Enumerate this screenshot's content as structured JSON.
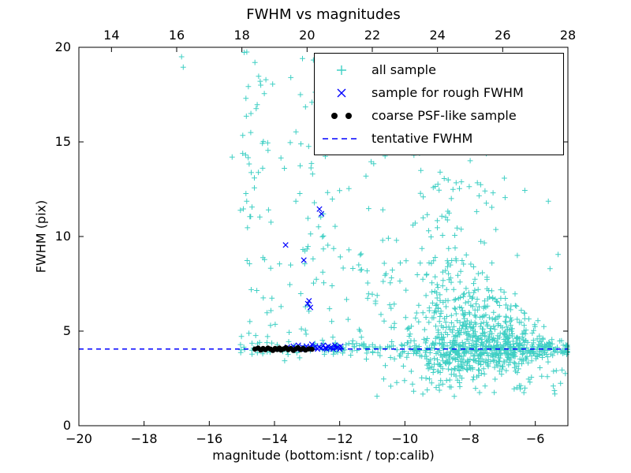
{
  "chart_data": {
    "type": "scatter",
    "title": "FWHM vs magnitudes",
    "xlabel": "magnitude (bottom:isnt / top:calib)",
    "ylabel": "FWHM (pix)",
    "x_range": [
      -20,
      -5
    ],
    "y_range": [
      0,
      20
    ],
    "top_x_range": [
      13,
      28
    ],
    "x_ticks": [
      -20,
      -18,
      -16,
      -14,
      -12,
      -10,
      -8,
      -6
    ],
    "top_x_ticks": [
      14,
      16,
      18,
      20,
      22,
      24,
      26,
      28
    ],
    "y_ticks": [
      0,
      5,
      10,
      15,
      20
    ],
    "grid": false,
    "legend_position": "upper right",
    "seed": 42,
    "colors": {
      "all_sample": "#3fcfc4",
      "rough": "#0000ff",
      "psf": "#000000",
      "tentative": "#0000ff",
      "axes": "#000000",
      "background": "#ffffff"
    },
    "legend": {
      "entries": [
        {
          "label": "all sample",
          "marker": "plus"
        },
        {
          "label": "sample for rough FWHM",
          "marker": "x"
        },
        {
          "label": "coarse PSF-like sample",
          "marker": "dot"
        },
        {
          "label": "tentative FWHM",
          "marker": "dashed-line"
        }
      ]
    },
    "series": {
      "all_sample": {
        "name": "all sample",
        "marker": "plus",
        "clusters": [
          {
            "type": "uniform",
            "x": [
              -15.05,
              -14.05
            ],
            "y": [
              3.9,
              19.8
            ],
            "count": 58
          },
          {
            "type": "uniform",
            "x": [
              -13.35,
              -12.4
            ],
            "y": [
              4.4,
              19.5
            ],
            "count": 34
          },
          {
            "type": "uniform",
            "x": [
              -14.05,
              -10.45
            ],
            "y": [
              4.4,
              15.6
            ],
            "count": 40
          },
          {
            "type": "uniform",
            "x": [
              -12.35,
              -10.55
            ],
            "y": [
              4.2,
              9.2
            ],
            "count": 22
          },
          {
            "type": "funnel",
            "xm": -7.8,
            "xs": 1.25,
            "xclip": [
              -10.9,
              -5.02
            ],
            "y_base": 4.0,
            "sy_min": 0.18,
            "sy_up_k": 0.62,
            "sy_dn_k": 0.22,
            "up_frac": 0.63,
            "yclip": [
              1.35,
              15.2
            ],
            "count": 780
          },
          {
            "type": "gauss",
            "mx": -8.4,
            "sx": 0.95,
            "xclip": [
              -10.6,
              -5.6
            ],
            "my": 11.6,
            "sy": 1.8,
            "yclip": [
              8.6,
              15.0
            ],
            "count": 55
          },
          {
            "type": "strip",
            "x": [
              -12.5,
              -5.02
            ],
            "my": 4.05,
            "sy": 0.2,
            "yclip": [
              3.45,
              4.75
            ],
            "count": 220
          },
          {
            "type": "strip",
            "x": [
              -15.05,
              -12.5
            ],
            "my": 4.1,
            "sy": 0.26,
            "yclip": [
              3.4,
              5.0
            ],
            "count": 42
          },
          {
            "type": "uniform",
            "x": [
              -8.7,
              -5.05
            ],
            "y": [
              1.55,
              3.2
            ],
            "count": 36
          }
        ],
        "points": [
          [
            -16.85,
            19.5
          ],
          [
            -16.8,
            18.95
          ],
          [
            -14.85,
            19.75
          ],
          [
            -14.6,
            19.2
          ],
          [
            -13.5,
            18.4
          ],
          [
            -12.62,
            19.05
          ],
          [
            -12.5,
            18.1
          ],
          [
            -12.42,
            17.35
          ],
          [
            -13.05,
            16.85
          ],
          [
            -11.62,
            16.1
          ],
          [
            -15.3,
            14.2
          ],
          [
            -10.35,
            14.55
          ],
          [
            -9.55,
            14.4
          ],
          [
            -8.5,
            15.0
          ],
          [
            -7.95,
            15.6
          ],
          [
            -6.55,
            9.0
          ],
          [
            -5.55,
            8.3
          ],
          [
            -5.3,
            9.05
          ],
          [
            -6.35,
            1.75
          ],
          [
            -5.45,
            2.1
          ]
        ]
      },
      "rough_fwhm": {
        "name": "sample for rough FWHM",
        "marker": "x",
        "points": [
          [
            -13.6,
            4.15
          ],
          [
            -13.5,
            4.05
          ],
          [
            -13.42,
            4.2
          ],
          [
            -13.34,
            4.1
          ],
          [
            -13.27,
            4.25
          ],
          [
            -13.2,
            4.05
          ],
          [
            -13.14,
            4.15
          ],
          [
            -13.08,
            4.1
          ],
          [
            -13.02,
            4.2
          ],
          [
            -12.96,
            4.05
          ],
          [
            -12.9,
            4.15
          ],
          [
            -12.85,
            4.3
          ],
          [
            -12.8,
            4.1
          ],
          [
            -12.74,
            4.2
          ],
          [
            -12.68,
            4.05
          ],
          [
            -12.63,
            4.15
          ],
          [
            -12.57,
            4.1
          ],
          [
            -12.5,
            4.25
          ],
          [
            -12.45,
            4.1
          ],
          [
            -12.4,
            4.05
          ],
          [
            -12.35,
            4.2
          ],
          [
            -12.3,
            4.1
          ],
          [
            -12.26,
            4.15
          ],
          [
            -12.2,
            4.05
          ],
          [
            -12.15,
            4.25
          ],
          [
            -12.1,
            4.1
          ],
          [
            -12.05,
            4.15
          ],
          [
            -12.0,
            4.05
          ],
          [
            -11.97,
            4.2
          ],
          [
            -13.66,
            9.55
          ],
          [
            -12.62,
            11.45
          ],
          [
            -12.56,
            11.2
          ],
          [
            -13.1,
            8.75
          ],
          [
            -12.98,
            6.45
          ],
          [
            -12.9,
            6.25
          ],
          [
            -12.94,
            6.6
          ]
        ]
      },
      "coarse_psf": {
        "name": "coarse PSF-like sample",
        "marker": "dot",
        "points": [
          [
            -14.6,
            4.05
          ],
          [
            -14.5,
            4.1
          ],
          [
            -14.42,
            4.0
          ],
          [
            -14.35,
            4.08
          ],
          [
            -14.28,
            4.02
          ],
          [
            -14.2,
            4.1
          ],
          [
            -14.12,
            4.05
          ],
          [
            -14.05,
            3.98
          ],
          [
            -13.98,
            4.08
          ],
          [
            -13.92,
            4.03
          ],
          [
            -13.85,
            4.1
          ],
          [
            -13.8,
            4.0
          ],
          [
            -13.72,
            4.06
          ],
          [
            -13.65,
            4.12
          ],
          [
            -13.58,
            4.02
          ],
          [
            -13.5,
            4.08
          ],
          [
            -13.42,
            3.98
          ],
          [
            -13.35,
            4.06
          ],
          [
            -13.28,
            4.12
          ],
          [
            -13.2,
            4.02
          ],
          [
            -13.12,
            4.08
          ],
          [
            -13.05,
            4.0
          ],
          [
            -12.95,
            4.06
          ],
          [
            -12.85,
            4.04
          ]
        ]
      },
      "tentative_fwhm": {
        "name": "tentative FWHM",
        "style": "dashed",
        "y": 4.05
      }
    }
  }
}
